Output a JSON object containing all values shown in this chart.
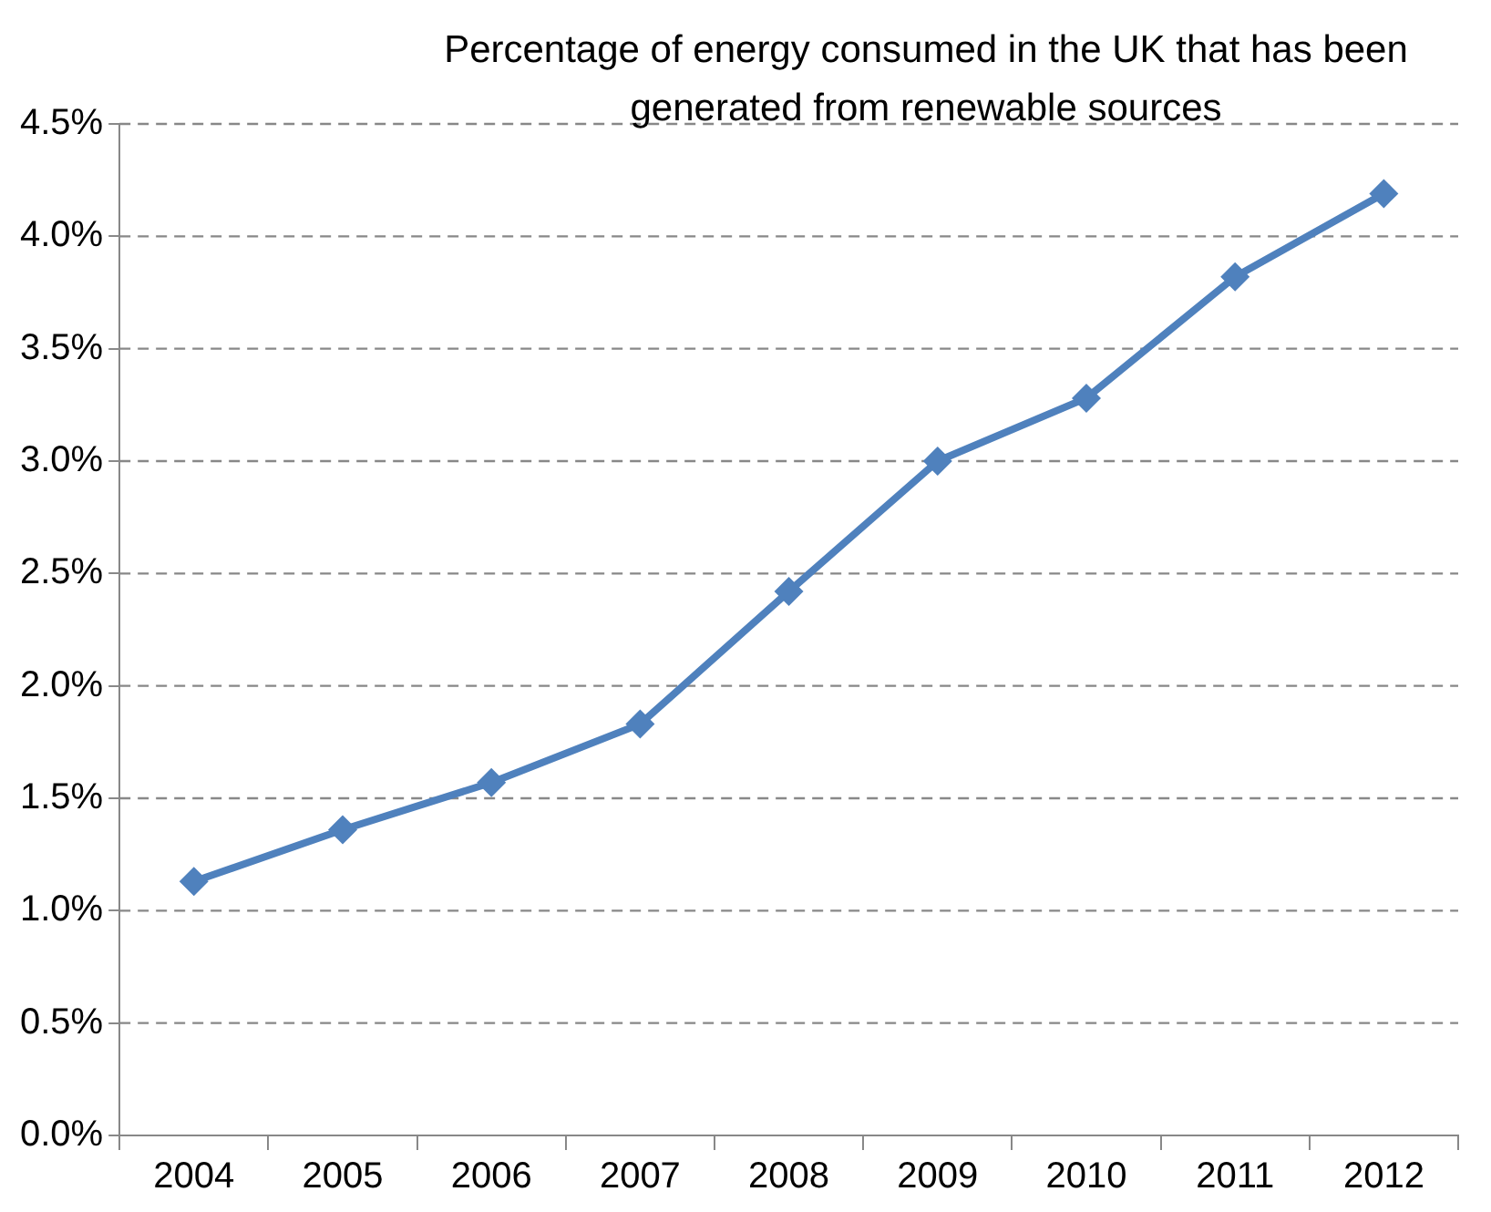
{
  "chart_data": {
    "type": "line",
    "title": "Percentage of energy consumed in the UK that has been generated from renewable sources",
    "categories": [
      "2004",
      "2005",
      "2006",
      "2007",
      "2008",
      "2009",
      "2010",
      "2011",
      "2012"
    ],
    "series": [
      {
        "color": "#4f81bd",
        "values": [
          1.13,
          1.36,
          1.57,
          1.83,
          2.42,
          3.0,
          3.28,
          3.82,
          4.19
        ]
      }
    ],
    "ylim": [
      0,
      4.5
    ],
    "yticks": [
      {
        "value": 0,
        "label": "0.0%"
      },
      {
        "value": 0.5,
        "label": "0.5%"
      },
      {
        "value": 1,
        "label": "1.0%"
      },
      {
        "value": 1.5,
        "label": "1.5%"
      },
      {
        "value": 2,
        "label": "2.0%"
      },
      {
        "value": 2.5,
        "label": "2.5%"
      },
      {
        "value": 3,
        "label": "3.0%"
      },
      {
        "value": 3.5,
        "label": "3.5%"
      },
      {
        "value": 4,
        "label": "4.0%"
      },
      {
        "value": 4.5,
        "label": "4.5%"
      }
    ],
    "grid": "y",
    "legend": false,
    "marker": "diamond",
    "line_style": "solid"
  }
}
